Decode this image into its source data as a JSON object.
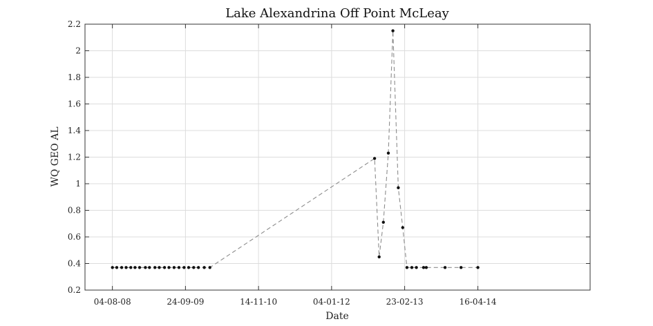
{
  "chart_data": {
    "type": "line",
    "title": "Lake Alexandrina Off Point McLeay",
    "xlabel": "Date",
    "ylabel": "WQ GEO AL",
    "x_axis": "date",
    "xlim": [
      "2008-03-01",
      "2016-01-15"
    ],
    "ylim": [
      0.2,
      2.2
    ],
    "grid": true,
    "line_style": "dashed",
    "line_color": "#8c8c8c",
    "marker_color": "#111111",
    "x_ticks": [
      {
        "label": "04-08-08",
        "date": "2008-08-04"
      },
      {
        "label": "24-09-09",
        "date": "2009-09-24"
      },
      {
        "label": "14-11-10",
        "date": "2010-11-14"
      },
      {
        "label": "04-01-12",
        "date": "2012-01-04"
      },
      {
        "label": "23-02-13",
        "date": "2013-02-23"
      },
      {
        "label": "16-04-14",
        "date": "2014-04-16"
      }
    ],
    "y_ticks": [
      "0.2",
      "0.4",
      "0.6",
      "0.8",
      "1",
      "1.2",
      "1.4",
      "1.6",
      "1.8",
      "2",
      "2.2"
    ],
    "series": [
      {
        "points": [
          [
            "2008-08-04",
            0.37
          ],
          [
            "2008-08-29",
            0.37
          ],
          [
            "2008-09-26",
            0.37
          ],
          [
            "2008-10-21",
            0.37
          ],
          [
            "2008-11-17",
            0.37
          ],
          [
            "2008-12-11",
            0.37
          ],
          [
            "2009-01-06",
            0.37
          ],
          [
            "2009-02-08",
            0.37
          ],
          [
            "2009-03-03",
            0.37
          ],
          [
            "2009-04-03",
            0.37
          ],
          [
            "2009-04-28",
            0.37
          ],
          [
            "2009-05-28",
            0.37
          ],
          [
            "2009-06-22",
            0.37
          ],
          [
            "2009-07-21",
            0.37
          ],
          [
            "2009-08-18",
            0.37
          ],
          [
            "2009-09-16",
            0.37
          ],
          [
            "2009-10-12",
            0.37
          ],
          [
            "2009-11-10",
            0.37
          ],
          [
            "2009-12-07",
            0.37
          ],
          [
            "2010-01-09",
            0.37
          ],
          [
            "2010-02-10",
            0.37
          ],
          [
            "2012-09-05",
            1.19
          ],
          [
            "2012-10-01",
            0.45
          ],
          [
            "2012-10-25",
            0.71
          ],
          [
            "2012-11-22",
            1.23
          ],
          [
            "2012-12-18",
            2.15
          ],
          [
            "2013-01-18",
            0.97
          ],
          [
            "2013-02-12",
            0.67
          ],
          [
            "2013-03-08",
            0.37
          ],
          [
            "2013-04-05",
            0.37
          ],
          [
            "2013-05-01",
            0.37
          ],
          [
            "2013-06-11",
            0.37
          ],
          [
            "2013-06-26",
            0.37
          ],
          [
            "2013-10-11",
            0.37
          ],
          [
            "2014-01-10",
            0.37
          ],
          [
            "2014-04-16",
            0.37
          ]
        ]
      }
    ]
  }
}
